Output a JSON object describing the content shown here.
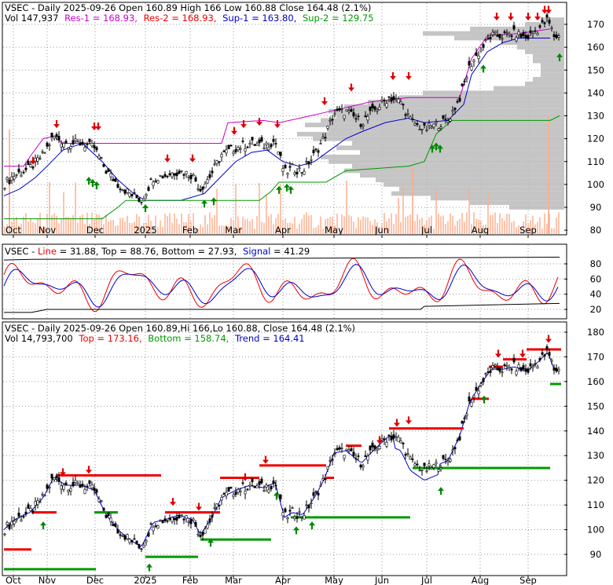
{
  "colors": {
    "text": "#000000",
    "res": "#cc00cc",
    "res2": "#ee0000",
    "sup1": "#0000cc",
    "sup2": "#009900",
    "top": "#ee0000",
    "bottom": "#009900",
    "trend": "#0000cc",
    "line": "#ee0000",
    "signal": "#0000cc",
    "arrow_up": "#008800",
    "arrow_down": "#dd0000",
    "profile": "#bbbbbb",
    "volume": "#ffaa88",
    "grid": "#999999"
  },
  "panel1": {
    "header1_a": "VSEC - Daily 2025-09-26 Open 160.89  High 166  Low 160.88  Close 164.48 (2.1%)",
    "header2_vol": "Vol 147,937",
    "header2_res1": "Res-1 = 168.93,",
    "header2_res2": "Res-2 = 168.93,",
    "header2_sup1": "Sup-1 = 163.80,",
    "header2_sup2": "Sup-2 = 129.75",
    "y_ticks": [
      "170",
      "160",
      "150",
      "140",
      "130",
      "120",
      "110",
      "100",
      "90",
      "80"
    ]
  },
  "panel2": {
    "header_a": "VSEC - ",
    "header_line": "Line",
    "header_b": " = 31.88,  Top = 88.76,  Bottom = 27.93,",
    "header_signal": "Signal",
    "header_c": " = 41.29",
    "y_ticks": [
      "80",
      "60",
      "40",
      "20"
    ]
  },
  "panel3": {
    "header1": "VSEC - Daily 2025-09-26 Open 160.89,Hi 166,Lo 160.88,  Close 164.48 (2.1%)",
    "header2_vol": "Vol 14,793,700",
    "header2_top": "Top = 173.16,",
    "header2_bottom": "Bottom = 158.74,",
    "header2_trend": "Trend = 164.41",
    "y_ticks": [
      "180",
      "170",
      "160",
      "150",
      "140",
      "130",
      "120",
      "110",
      "100",
      "90"
    ]
  },
  "x_ticks": [
    "Oct",
    "Nov",
    "Dec",
    "2025",
    "Feb",
    "Mar",
    "Apr",
    "May",
    "Jun",
    "Jul",
    "Aug",
    "Sep"
  ],
  "chart_data": [
    {
      "type": "candlestick",
      "title": "VSEC - Daily 2025-09-26 Open 160.89  High 166  Low 160.88  Close 164.48 (2.1%)",
      "ylim": [
        80,
        175
      ],
      "close_approx": [
        {
          "x": "Oct",
          "y": 100
        },
        {
          "x": "mid-Oct",
          "y": 105
        },
        {
          "x": "Nov",
          "y": 120
        },
        {
          "x": "mid-Nov",
          "y": 118
        },
        {
          "x": "Dec",
          "y": 116
        },
        {
          "x": "mid-Dec",
          "y": 100
        },
        {
          "x": "2025",
          "y": 95
        },
        {
          "x": "mid-Jan",
          "y": 103
        },
        {
          "x": "Feb",
          "y": 104
        },
        {
          "x": "mid-Feb",
          "y": 100
        },
        {
          "x": "Mar",
          "y": 113
        },
        {
          "x": "mid-Mar",
          "y": 117
        },
        {
          "x": "Apr",
          "y": 118
        },
        {
          "x": "mid-Apr",
          "y": 108
        },
        {
          "x": "May",
          "y": 128
        },
        {
          "x": "mid-May",
          "y": 133
        },
        {
          "x": "Jun",
          "y": 135
        },
        {
          "x": "mid-Jun",
          "y": 137
        },
        {
          "x": "Jul",
          "y": 127
        },
        {
          "x": "mid-Jul",
          "y": 125
        },
        {
          "x": "Aug",
          "y": 155
        },
        {
          "x": "mid-Aug",
          "y": 165
        },
        {
          "x": "Sep",
          "y": 167
        },
        {
          "x": "end-Sep",
          "y": 164.48
        }
      ],
      "series": [
        {
          "name": "Res-1",
          "last": 168.93
        },
        {
          "name": "Res-2",
          "last": 168.93
        },
        {
          "name": "Sup-1",
          "last": 163.8
        },
        {
          "name": "Sup-2",
          "last": 129.75
        }
      ]
    },
    {
      "type": "line",
      "ylim": [
        10,
        90
      ],
      "series": [
        {
          "name": "Line",
          "last": 31.88
        },
        {
          "name": "Signal",
          "last": 41.29
        },
        {
          "name": "Top",
          "last": 88.76
        },
        {
          "name": "Bottom",
          "last": 27.93
        }
      ]
    },
    {
      "type": "candlestick",
      "title": "VSEC - Daily 2025-09-26 Open 160.89,Hi 166,Lo 160.88,  Close 164.48 (2.1%)",
      "ylim": [
        85,
        182
      ],
      "series": [
        {
          "name": "Top",
          "last": 173.16
        },
        {
          "name": "Bottom",
          "last": 158.74
        },
        {
          "name": "Trend",
          "last": 164.41
        }
      ]
    }
  ]
}
